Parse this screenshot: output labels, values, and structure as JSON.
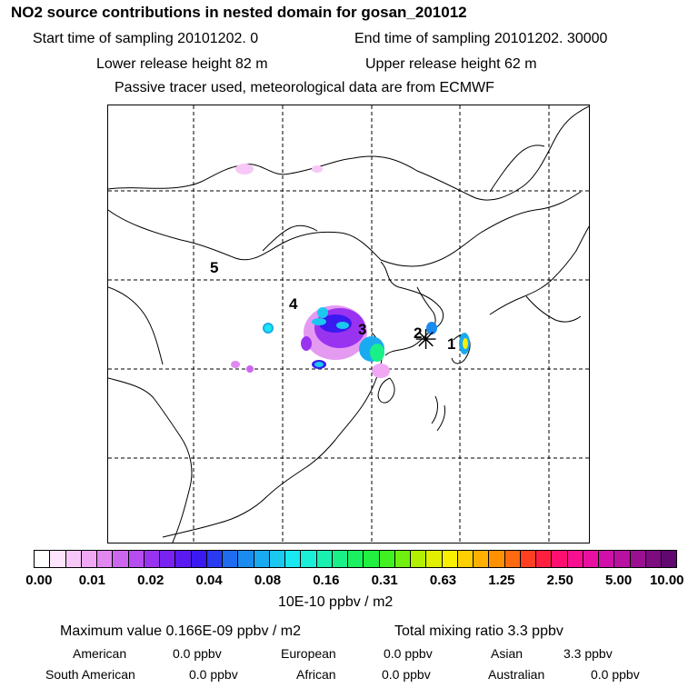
{
  "header": {
    "title": "NO2 source contributions in nested domain for gosan_201012",
    "start_label": "Start time of sampling 20101202.     0",
    "end_label": "End time of sampling 20101202. 30000",
    "lower_height": "Lower release height   82 m",
    "upper_height": "Upper release height   62 m",
    "note": "Passive tracer used, meteorological data are from ECMWF"
  },
  "map": {
    "markers": [
      "1",
      "2",
      "3",
      "4",
      "5"
    ],
    "receptor_symbol": "✳"
  },
  "colorbar": {
    "ticks": [
      "0.00",
      "0.01",
      "0.02",
      "0.04",
      "0.08",
      "0.16",
      "0.31",
      "0.63",
      "1.25",
      "2.50",
      "5.00",
      "10.00"
    ],
    "colors": [
      "#ffffff",
      "#fde6fd",
      "#f7c8f7",
      "#f0a8f4",
      "#e088f0",
      "#cc66ee",
      "#b64df0",
      "#9a33f0",
      "#7a22f0",
      "#5a1af0",
      "#3a1af0",
      "#2a3af0",
      "#1f6cf0",
      "#1a8cf0",
      "#1aaaf0",
      "#1ac8f0",
      "#1ae8f0",
      "#1af0d8",
      "#1af0b0",
      "#1af088",
      "#1af060",
      "#22f040",
      "#40f020",
      "#70f010",
      "#b0f000",
      "#e0f000",
      "#f8f000",
      "#ffd000",
      "#ffb000",
      "#ff9000",
      "#ff6a10",
      "#ff4020",
      "#ff2040",
      "#ff1070",
      "#f81090",
      "#e810a0",
      "#d010a8",
      "#b810a0",
      "#9a1090",
      "#7c0c80",
      "#600870"
    ],
    "unit_label": "10E-10 ppbv / m2"
  },
  "stats": {
    "max_value": "Maximum value  0.166E-09 ppbv / m2",
    "total": "Total mixing ratio        3.3 ppbv",
    "regions": [
      {
        "name": "American",
        "value": "0.0 ppbv"
      },
      {
        "name": "European",
        "value": "0.0 ppbv"
      },
      {
        "name": "Asian",
        "value": "3.3 ppbv"
      },
      {
        "name": "South American",
        "value": "0.0 ppbv"
      },
      {
        "name": "African",
        "value": "0.0 ppbv"
      },
      {
        "name": "Australian",
        "value": "0.0 ppbv"
      }
    ]
  }
}
